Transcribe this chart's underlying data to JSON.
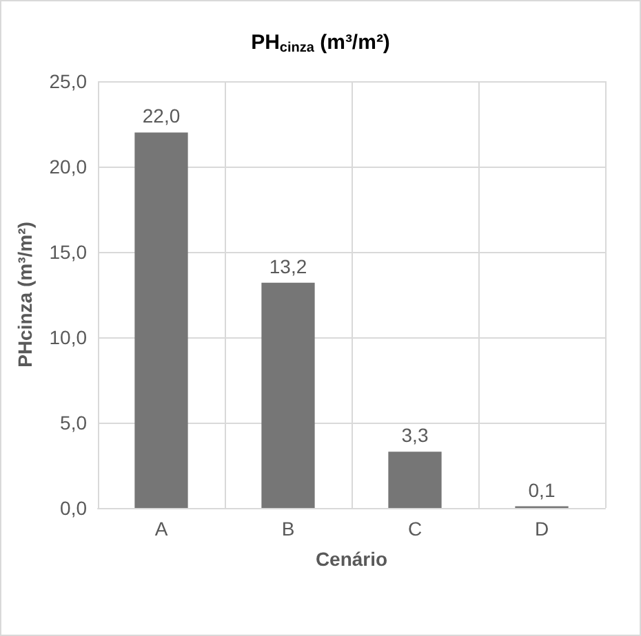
{
  "chart_data": {
    "type": "bar",
    "title": "PH$_{cinza}$ (m³/m²)",
    "xlabel": "Cenário",
    "ylabel": "PHcinza (m³/m²)",
    "categories": [
      "A",
      "B",
      "C",
      "D"
    ],
    "values": [
      22.0,
      13.2,
      3.3,
      0.1
    ],
    "value_labels": [
      "22,0",
      "13,2",
      "3,3",
      "0,1"
    ],
    "color": "#767676",
    "ylim": [
      0,
      25
    ],
    "yticks": [
      {
        "value": 0,
        "label": "0,0"
      },
      {
        "value": 5,
        "label": "5,0"
      },
      {
        "value": 10,
        "label": "10,0"
      },
      {
        "value": 15,
        "label": "15,0"
      },
      {
        "value": 20,
        "label": "20,0"
      },
      {
        "value": 25,
        "label": "25,0"
      }
    ],
    "grid": true
  }
}
